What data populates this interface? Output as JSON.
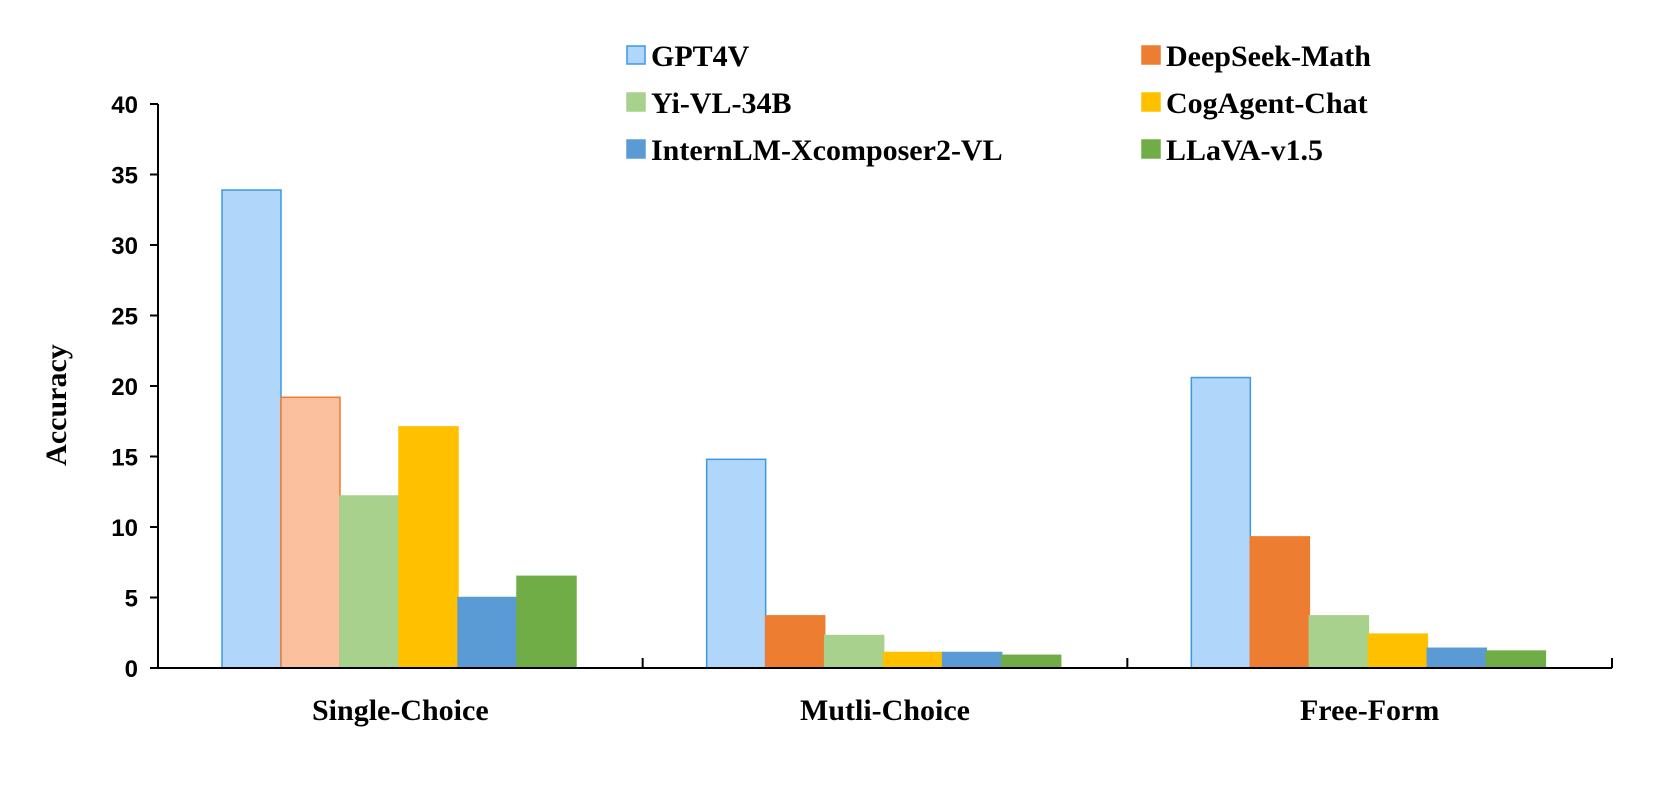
{
  "chart_data": {
    "type": "bar",
    "title": "",
    "xlabel": "",
    "ylabel": "Accuracy",
    "ylim": [
      0,
      40
    ],
    "yticks": [
      0,
      5,
      10,
      15,
      20,
      25,
      30,
      35,
      40
    ],
    "grid": false,
    "legend_position": "top",
    "categories": [
      "Single-Choice",
      "Mutli-Choice",
      "Free-Form"
    ],
    "series": [
      {
        "name": "GPT4V",
        "color": "#B0D6FA",
        "stroke": "#3C98E6",
        "values": [
          33.9,
          14.8,
          20.6
        ]
      },
      {
        "name": "DeepSeek-Math",
        "color": "#ED7D31",
        "stroke": "#ED7D31",
        "values": [
          19.2,
          3.7,
          9.3
        ]
      },
      {
        "name": "Yi-VL-34B",
        "color": "#A9D18E",
        "stroke": "#A9D18E",
        "values": [
          12.2,
          2.3,
          3.7
        ]
      },
      {
        "name": "CogAgent-Chat",
        "color": "#FFC000",
        "stroke": "#FFC000",
        "values": [
          17.1,
          1.1,
          2.4
        ]
      },
      {
        "name": "InternLM-Xcomposer2-VL",
        "color": "#5B9BD5",
        "stroke": "#5B9BD5",
        "values": [
          5.0,
          1.1,
          1.4
        ]
      },
      {
        "name": "LLaVA-v1.5",
        "color": "#70AD47",
        "stroke": "#70AD47",
        "values": [
          6.5,
          0.9,
          1.2
        ]
      }
    ],
    "highlight": {
      "series": "DeepSeek-Math",
      "category": "Single-Choice",
      "color": "#FBC09E"
    }
  }
}
